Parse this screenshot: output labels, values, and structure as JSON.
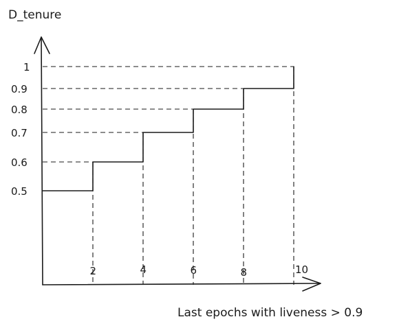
{
  "chart_data": {
    "type": "line",
    "step": true,
    "hand_drawn": true,
    "ylabel": "D_tenure",
    "xlabel": "Last epochs with liveness > 0.9",
    "yticks": [
      {
        "value": 0.5,
        "label": "0.5"
      },
      {
        "value": 0.6,
        "label": "0.6"
      },
      {
        "value": 0.7,
        "label": "0.7"
      },
      {
        "value": 0.8,
        "label": "0.8"
      },
      {
        "value": 0.9,
        "label": "0.9"
      },
      {
        "value": 1.0,
        "label": "1"
      }
    ],
    "xticks": [
      {
        "value": 2,
        "label": "2"
      },
      {
        "value": 4,
        "label": "4"
      },
      {
        "value": 6,
        "label": "6"
      },
      {
        "value": 8,
        "label": "8"
      },
      {
        "value": 10,
        "label": "10"
      }
    ],
    "series": [
      {
        "points": [
          {
            "x": 0,
            "y": 0.5
          },
          {
            "x": 2,
            "y": 0.5
          },
          {
            "x": 2,
            "y": 0.6
          },
          {
            "x": 4,
            "y": 0.6
          },
          {
            "x": 4,
            "y": 0.7
          },
          {
            "x": 6,
            "y": 0.7
          },
          {
            "x": 6,
            "y": 0.8
          },
          {
            "x": 8,
            "y": 0.8
          },
          {
            "x": 8,
            "y": 0.9
          },
          {
            "x": 10,
            "y": 0.9
          },
          {
            "x": 10,
            "y": 1.0
          }
        ]
      }
    ],
    "guides": "dashed-lines-to-ticks",
    "grid": false,
    "legend": "none",
    "colors": {
      "ink": "#1a1a1a",
      "background": "#ffffff"
    }
  }
}
